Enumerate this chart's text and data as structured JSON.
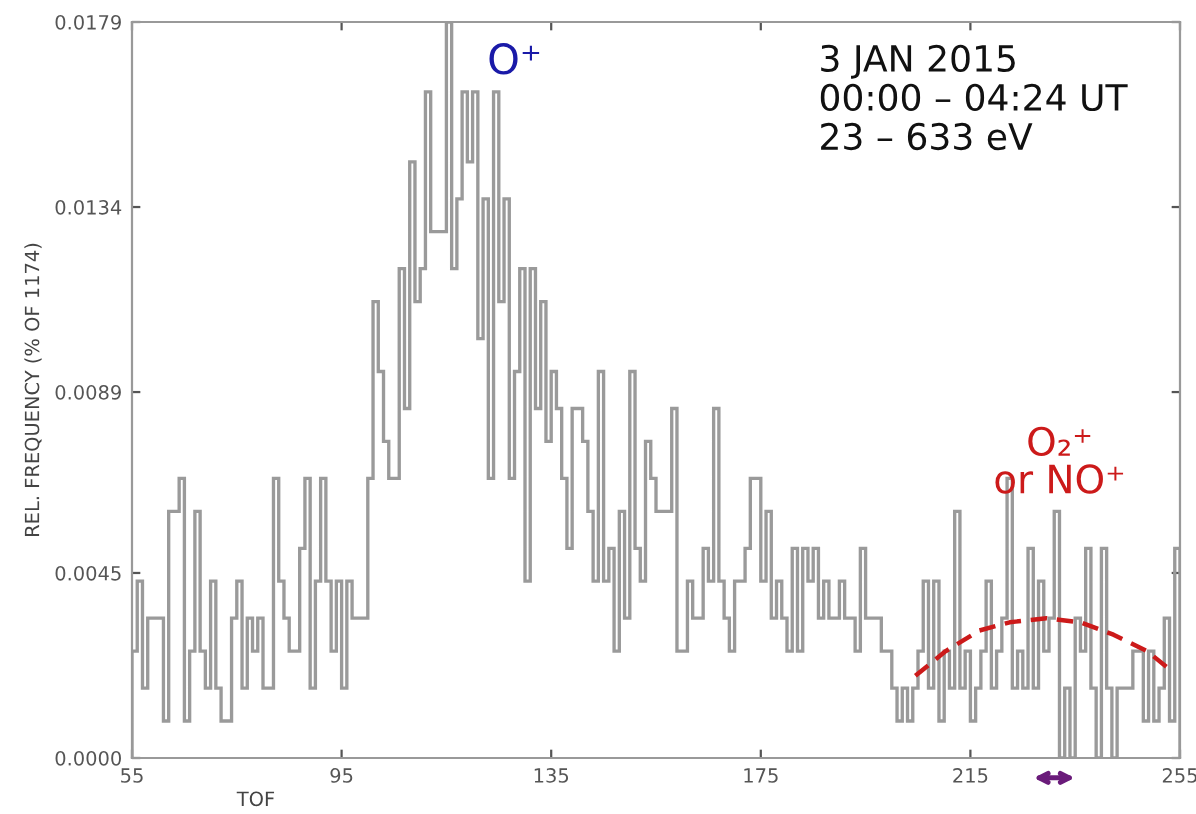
{
  "chart_data": {
    "type": "histogram",
    "xlabel": "TOF",
    "ylabel": "REL. FREQUENCY (% OF 1174)",
    "xlim": [
      55,
      255
    ],
    "xticks": [
      55,
      95,
      135,
      175,
      215,
      255
    ],
    "ylim": [
      0,
      0.0179
    ],
    "yticks": [
      {
        "value": 0,
        "label": "0.0000"
      },
      {
        "value": 0.0045,
        "label": "0.0045"
      },
      {
        "value": 0.0089,
        "label": "0.0089"
      },
      {
        "value": 0.0134,
        "label": "0.0134"
      },
      {
        "value": 0.0179,
        "label": "0.0179"
      }
    ],
    "grid": false,
    "series": [
      {
        "color": "#9a9a9a",
        "bins": [
          55,
          56,
          57,
          58,
          59,
          60,
          61,
          62,
          63,
          64,
          65,
          66,
          67,
          68,
          69,
          70,
          71,
          72,
          73,
          74,
          75,
          76,
          77,
          78,
          79,
          80,
          81,
          82,
          83,
          84,
          85,
          86,
          87,
          88,
          89,
          90,
          91,
          92,
          93,
          94,
          95,
          96,
          97,
          98,
          99,
          100,
          101,
          102,
          103,
          104,
          105,
          106,
          107,
          108,
          109,
          110,
          111,
          112,
          113,
          114,
          115,
          116,
          117,
          118,
          119,
          120,
          121,
          122,
          123,
          124,
          125,
          126,
          127,
          128,
          129,
          130,
          131,
          132,
          133,
          134,
          135,
          136,
          137,
          138,
          139,
          140,
          141,
          142,
          143,
          144,
          145,
          146,
          147,
          148,
          149,
          150,
          151,
          152,
          153,
          154,
          155,
          156,
          157,
          158,
          159,
          160,
          161,
          162,
          163,
          164,
          165,
          166,
          167,
          168,
          169,
          170,
          171,
          172,
          173,
          174,
          175,
          176,
          177,
          178,
          179,
          180,
          181,
          182,
          183,
          184,
          185,
          186,
          187,
          188,
          189,
          190,
          191,
          192,
          193,
          194,
          195,
          196,
          197,
          198,
          199,
          200,
          201,
          202,
          203,
          204,
          205,
          206,
          207,
          208,
          209,
          210,
          211,
          212,
          213,
          214,
          215,
          216,
          217,
          218,
          219,
          220,
          221,
          222,
          223,
          224,
          225,
          226,
          227,
          228,
          229,
          230,
          231,
          232,
          233,
          234,
          235,
          236,
          237,
          238,
          239,
          240,
          241,
          242,
          243,
          244,
          245,
          246,
          247,
          248,
          249,
          250,
          251,
          252,
          253,
          254,
          255
        ],
        "values": [
          0.0026,
          0.0043,
          0.0017,
          0.0034,
          0.0034,
          0.0034,
          0.0009,
          0.006,
          0.006,
          0.0068,
          0.0009,
          0.0026,
          0.006,
          0.0026,
          0.0017,
          0.0043,
          0.0017,
          0.0009,
          0.0009,
          0.0034,
          0.0043,
          0.0017,
          0.0034,
          0.0026,
          0.0034,
          0.0017,
          0.0017,
          0.0068,
          0.0043,
          0.0034,
          0.0026,
          0.0026,
          0.0051,
          0.0068,
          0.0017,
          0.0043,
          0.0068,
          0.0043,
          0.0026,
          0.0043,
          0.0017,
          0.0043,
          0.0034,
          0.0034,
          0.0034,
          0.0068,
          0.0111,
          0.0094,
          0.0077,
          0.0068,
          0.0068,
          0.0119,
          0.0085,
          0.0145,
          0.0111,
          0.0119,
          0.0162,
          0.0128,
          0.0128,
          0.0128,
          0.0179,
          0.0119,
          0.0136,
          0.0162,
          0.0145,
          0.0162,
          0.0102,
          0.0136,
          0.0068,
          0.0162,
          0.0111,
          0.0136,
          0.0068,
          0.0094,
          0.0119,
          0.0043,
          0.0119,
          0.0085,
          0.0111,
          0.0077,
          0.0094,
          0.0085,
          0.0068,
          0.0051,
          0.0085,
          0.0085,
          0.0077,
          0.006,
          0.0043,
          0.0094,
          0.0043,
          0.0051,
          0.0026,
          0.006,
          0.0034,
          0.0094,
          0.0051,
          0.0043,
          0.0077,
          0.0068,
          0.006,
          0.006,
          0.006,
          0.0085,
          0.0026,
          0.0026,
          0.0043,
          0.0034,
          0.0034,
          0.0051,
          0.0043,
          0.0085,
          0.0043,
          0.0034,
          0.0026,
          0.0043,
          0.0043,
          0.0051,
          0.0068,
          0.0068,
          0.0043,
          0.006,
          0.0034,
          0.0043,
          0.0034,
          0.0026,
          0.0051,
          0.0026,
          0.0051,
          0.0043,
          0.0051,
          0.0034,
          0.0043,
          0.0034,
          0.0034,
          0.0043,
          0.0034,
          0.0034,
          0.0026,
          0.0051,
          0.0034,
          0.0034,
          0.0034,
          0.0026,
          0.0026,
          0.0017,
          0.0009,
          0.0017,
          0.0009,
          0.0017,
          0.0026,
          0.0043,
          0.0017,
          0.0043,
          0.0009,
          0.0026,
          0.0017,
          0.006,
          0.0017,
          0.0026,
          0.0009,
          0.0017,
          0.0026,
          0.0043,
          0.0017,
          0.0026,
          0.0034,
          0.0068,
          0.0017,
          0.0026,
          0.0017,
          0.0051,
          0.0017,
          0.0043,
          0.0026,
          0.0034,
          0.006,
          0,
          0.0017,
          0,
          0.0034,
          0.0026,
          0.0051,
          0.0017,
          0,
          0.0051,
          0.0017,
          0,
          0.0017,
          0.0017,
          0.0017,
          0.0026,
          0.0026,
          0.0009,
          0.0026,
          0.0009,
          0.0017,
          0.0034,
          0.0009,
          0.0051
        ]
      },
      {
        "type": "line",
        "color": "#cc1a1a",
        "line_style": "dashed",
        "x": [
          204.5,
          210.3,
          216.7,
          222.5,
          229.5,
          236,
          242.3,
          248.7,
          252.6
        ],
        "values": [
          0.002,
          0.0026,
          0.0031,
          0.0033,
          0.0034,
          0.0033,
          0.003,
          0.0026,
          0.0022
        ]
      }
    ],
    "annotations": [
      "O⁺",
      "3 JAN 2015\n00:00 – 04:24 UT\n23 – 633 eV",
      "O₂⁺\nor NO⁺"
    ]
  }
}
